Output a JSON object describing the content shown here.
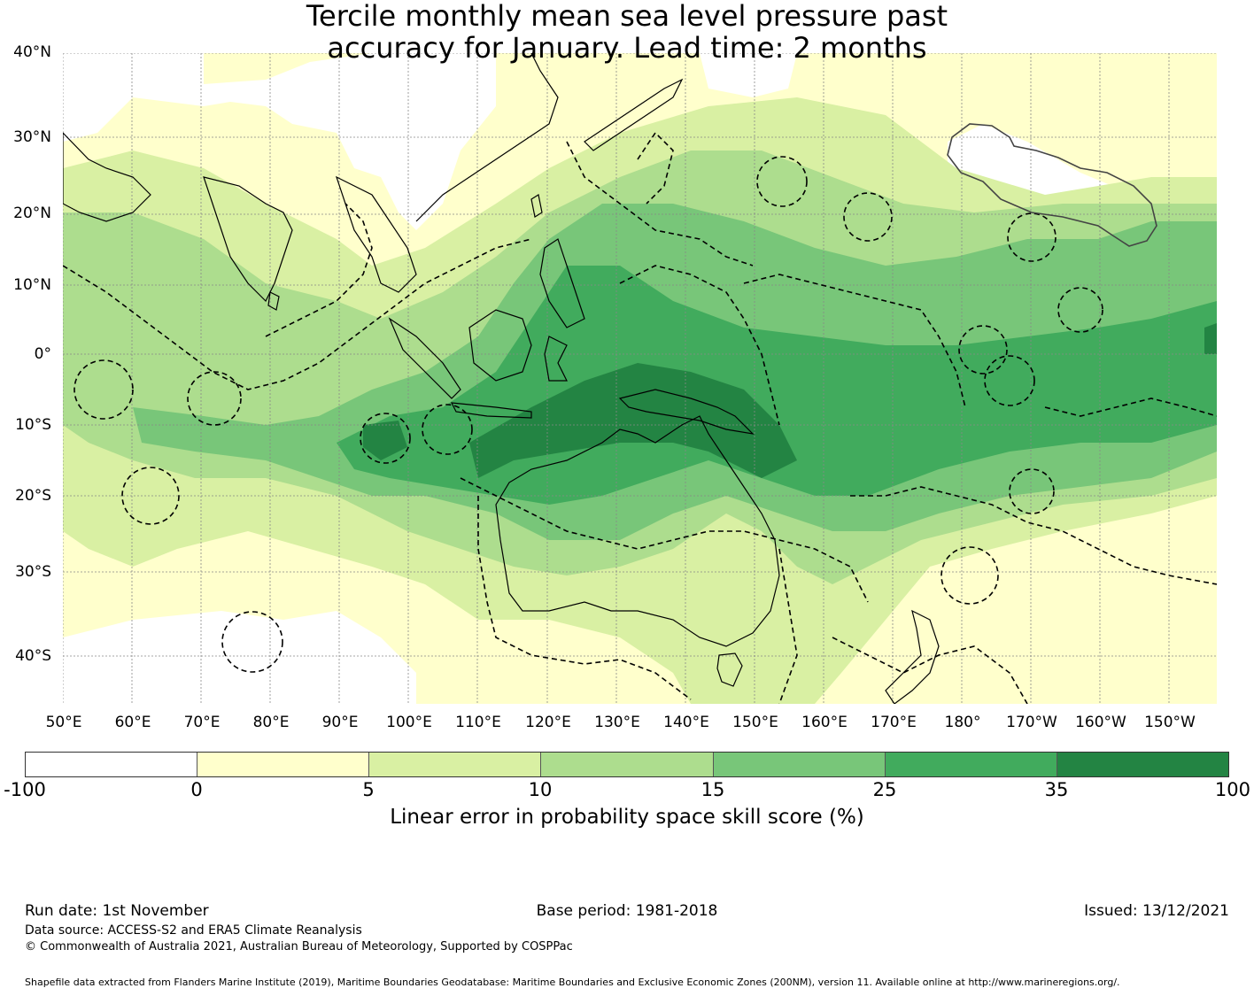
{
  "title": {
    "line1": "Tercile monthly mean sea level pressure past",
    "line2": "accuracy for January. Lead time: 2 months"
  },
  "map": {
    "lat_labels": [
      "40°N",
      "30°N",
      "20°N",
      "10°N",
      "0°",
      "10°S",
      "20°S",
      "30°S",
      "40°S"
    ],
    "lon_labels": [
      "50°E",
      "60°E",
      "70°E",
      "80°E",
      "90°E",
      "100°E",
      "110°E",
      "120°E",
      "130°E",
      "140°E",
      "150°E",
      "160°E",
      "170°E",
      "180°",
      "170°W",
      "160°W",
      "150°W"
    ]
  },
  "colorbar": {
    "ticks": [
      "-100",
      "0",
      "5",
      "10",
      "15",
      "25",
      "35",
      "100"
    ],
    "colors": [
      "#ffffff",
      "#ffffcc",
      "#d9f0a3",
      "#addd8e",
      "#78c679",
      "#41ab5d",
      "#238443"
    ],
    "label": "Linear error in probability space skill score (%)"
  },
  "footer": {
    "run_date": "Run date: 1st November",
    "base_period": "Base period: 1981-2018",
    "issued": "Issued: 13/12/2021",
    "data_source": "Data source: ACCESS-S2 and ERA5 Climate Reanalysis",
    "copyright": "© Commonwealth of Australia 2021, Australian Bureau of Meteorology, Supported by COSPPac",
    "shapefile": "Shapefile data extracted from Flanders Marine Institute (2019), Maritime Boundaries Geodatabase: Maritime Boundaries and Exclusive Economic Zones (200NM), version 11. Available online at http://www.marineregions.org/."
  }
}
